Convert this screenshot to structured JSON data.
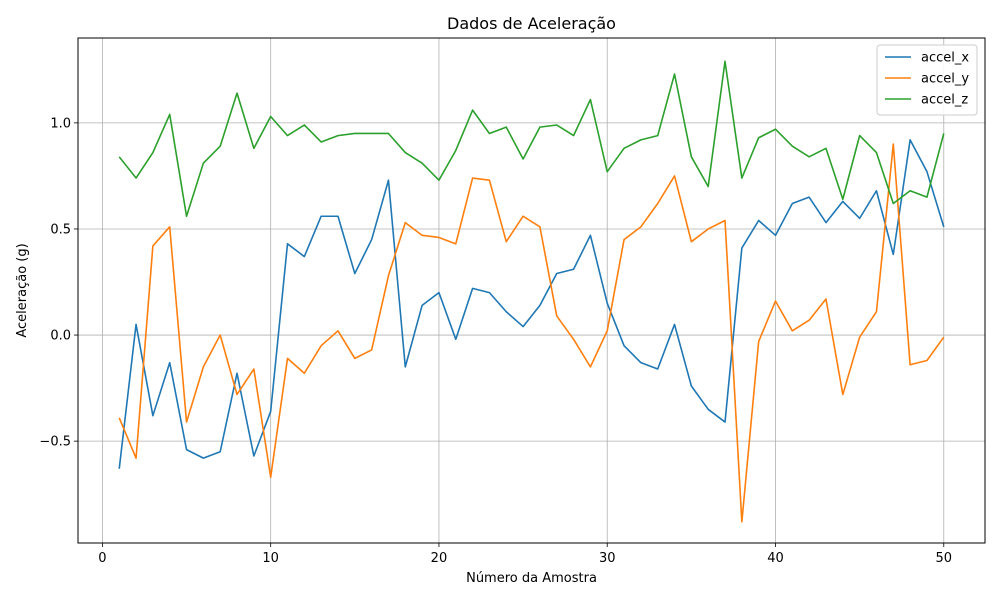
{
  "chart_data": {
    "type": "line",
    "title": "Dados de Aceleração",
    "xlabel": "Número da Amostra",
    "ylabel": "Aceleração (g)",
    "xlim": [
      -1.45,
      52.45
    ],
    "ylim": [
      -0.98,
      1.4
    ],
    "xticks": [
      0,
      10,
      20,
      30,
      40,
      50
    ],
    "xtick_labels": [
      "0",
      "10",
      "20",
      "30",
      "40",
      "50"
    ],
    "yticks": [
      -0.5,
      0.0,
      0.5,
      1.0
    ],
    "ytick_labels": [
      "−0.5",
      "0.0",
      "0.5",
      "1.0"
    ],
    "grid": true,
    "legend_position": "top-right",
    "x": [
      1,
      2,
      3,
      4,
      5,
      6,
      7,
      8,
      9,
      10,
      11,
      12,
      13,
      14,
      15,
      16,
      17,
      18,
      19,
      20,
      21,
      22,
      23,
      24,
      25,
      26,
      27,
      28,
      29,
      30,
      31,
      32,
      33,
      34,
      35,
      36,
      37,
      38,
      39,
      40,
      41,
      42,
      43,
      44,
      45,
      46,
      47,
      48,
      49,
      50
    ],
    "series": [
      {
        "name": "accel_x",
        "color": "#1f77b4",
        "values": [
          -0.63,
          0.05,
          -0.38,
          -0.13,
          -0.54,
          -0.58,
          -0.55,
          -0.18,
          -0.57,
          -0.36,
          0.43,
          0.37,
          0.56,
          0.56,
          0.29,
          0.45,
          0.73,
          -0.15,
          0.14,
          0.2,
          -0.02,
          0.22,
          0.2,
          0.11,
          0.04,
          0.14,
          0.29,
          0.31,
          0.47,
          0.15,
          -0.05,
          -0.13,
          -0.16,
          0.05,
          -0.24,
          -0.35,
          -0.41,
          0.41,
          0.54,
          0.47,
          0.62,
          0.65,
          0.53,
          0.63,
          0.55,
          0.68,
          0.38,
          0.92,
          0.77,
          0.51
        ]
      },
      {
        "name": "accel_y",
        "color": "#ff7f0e",
        "values": [
          -0.39,
          -0.58,
          0.42,
          0.51,
          -0.41,
          -0.15,
          0.0,
          -0.28,
          -0.16,
          -0.67,
          -0.11,
          -0.18,
          -0.05,
          0.02,
          -0.11,
          -0.07,
          0.28,
          0.53,
          0.47,
          0.46,
          0.43,
          0.74,
          0.73,
          0.44,
          0.56,
          0.51,
          0.09,
          -0.02,
          -0.15,
          0.02,
          0.45,
          0.51,
          0.62,
          0.75,
          0.44,
          0.5,
          0.54,
          -0.88,
          -0.03,
          0.16,
          0.02,
          0.07,
          0.17,
          -0.28,
          -0.01,
          0.11,
          0.9,
          -0.14,
          -0.12,
          -0.01
        ]
      },
      {
        "name": "accel_z",
        "color": "#2ca02c",
        "values": [
          0.84,
          0.74,
          0.86,
          1.04,
          0.56,
          0.81,
          0.89,
          1.14,
          0.88,
          1.03,
          0.94,
          0.99,
          0.91,
          0.94,
          0.95,
          0.95,
          0.95,
          0.86,
          0.81,
          0.73,
          0.87,
          1.06,
          0.95,
          0.98,
          0.83,
          0.98,
          0.99,
          0.94,
          1.11,
          0.77,
          0.88,
          0.92,
          0.94,
          1.23,
          0.84,
          0.7,
          1.29,
          0.74,
          0.93,
          0.97,
          0.89,
          0.84,
          0.88,
          0.64,
          0.94,
          0.86,
          0.62,
          0.68,
          0.65,
          0.95
        ]
      }
    ]
  }
}
